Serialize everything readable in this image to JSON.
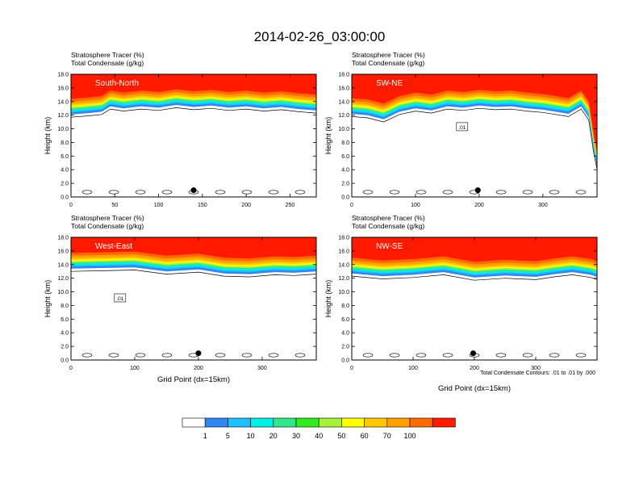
{
  "figure": {
    "title": "2014-02-26_03:00:00",
    "header_line1": "Stratosphere Tracer   (%)",
    "header_line2": "Total Condensate   (g/kg)",
    "contour_note": "Total Condensate Contours: .01 to .01 by .000",
    "colors": {
      "levels": [
        "#ffffff",
        "#2f86f0",
        "#1ec0ff",
        "#00f0e8",
        "#2ee88a",
        "#30ec1c",
        "#a8f03a",
        "#ffff00",
        "#ffc800",
        "#ffa000",
        "#ff6a00",
        "#ff1a00"
      ]
    }
  },
  "chart_data": [
    {
      "type": "heatmap",
      "panel": "South-North",
      "ylabel": "Height (km)",
      "xlabel": "",
      "xlim": [
        0,
        280
      ],
      "ylim": [
        0,
        18
      ],
      "xticks": [
        "0",
        "50",
        "100",
        "150",
        "200",
        "250"
      ],
      "yticks": [
        "0.0",
        "2.0",
        "4.0",
        "6.0",
        "8.0",
        "10.0",
        "12.0",
        "14.0",
        "16.0",
        "18.0"
      ],
      "tropopause_km": [
        [
          0,
          14.4
        ],
        [
          20,
          14.6
        ],
        [
          35,
          14.8
        ],
        [
          45,
          15.6
        ],
        [
          60,
          15.3
        ],
        [
          80,
          15.6
        ],
        [
          100,
          15.4
        ],
        [
          120,
          15.8
        ],
        [
          140,
          15.5
        ],
        [
          160,
          15.7
        ],
        [
          180,
          15.4
        ],
        [
          200,
          15.6
        ],
        [
          220,
          15.3
        ],
        [
          240,
          15.5
        ],
        [
          260,
          15.2
        ],
        [
          280,
          15.0
        ]
      ],
      "station_marker": [
        140,
        1.0
      ],
      "contour_label": ""
    },
    {
      "type": "heatmap",
      "panel": "SW-NE",
      "ylabel": "Height (km)",
      "xlabel": "",
      "xlim": [
        0,
        385
      ],
      "ylim": [
        0,
        18
      ],
      "xticks": [
        "0",
        "100",
        "200",
        "300"
      ],
      "yticks": [
        "0.0",
        "2.0",
        "4.0",
        "6.0",
        "8.0",
        "10.0",
        "12.0",
        "14.0",
        "16.0",
        "18.0"
      ],
      "tropopause_km": [
        [
          0,
          14.5
        ],
        [
          25,
          14.3
        ],
        [
          50,
          13.7
        ],
        [
          75,
          14.8
        ],
        [
          100,
          15.3
        ],
        [
          125,
          15.0
        ],
        [
          150,
          15.6
        ],
        [
          175,
          15.4
        ],
        [
          200,
          15.7
        ],
        [
          225,
          15.5
        ],
        [
          250,
          15.6
        ],
        [
          275,
          15.3
        ],
        [
          300,
          15.1
        ],
        [
          320,
          14.8
        ],
        [
          340,
          14.5
        ],
        [
          360,
          15.6
        ],
        [
          372,
          14.0
        ],
        [
          380,
          9.0
        ],
        [
          385,
          6.8
        ]
      ],
      "station_marker": [
        198,
        1.0
      ],
      "contour_label": ".01"
    },
    {
      "type": "heatmap",
      "panel": "West-East",
      "ylabel": "Height (km)",
      "xlabel": "Grid Point (dx=15km)",
      "xlim": [
        0,
        385
      ],
      "ylim": [
        0,
        18
      ],
      "xticks": [
        "0",
        "100",
        "200",
        "300"
      ],
      "yticks": [
        "0.0",
        "2.0",
        "4.0",
        "6.0",
        "8.0",
        "10.0",
        "12.0",
        "14.0",
        "16.0",
        "18.0"
      ],
      "tropopause_km": [
        [
          0,
          15.7
        ],
        [
          50,
          15.8
        ],
        [
          100,
          15.9
        ],
        [
          150,
          15.3
        ],
        [
          200,
          15.6
        ],
        [
          240,
          15.0
        ],
        [
          280,
          14.9
        ],
        [
          320,
          15.2
        ],
        [
          350,
          15.1
        ],
        [
          385,
          15.3
        ]
      ],
      "station_marker": [
        200,
        1.0
      ],
      "contour_label": ".01"
    },
    {
      "type": "heatmap",
      "panel": "NW-SE",
      "ylabel": "Height (km)",
      "xlabel": "Grid Point (dx=15km)",
      "xlim": [
        0,
        400
      ],
      "ylim": [
        0,
        18
      ],
      "xticks": [
        "0",
        "100",
        "200",
        "300"
      ],
      "yticks": [
        "0.0",
        "2.0",
        "4.0",
        "6.0",
        "8.0",
        "10.0",
        "12.0",
        "14.0",
        "16.0",
        "18.0"
      ],
      "tropopause_km": [
        [
          0,
          15.0
        ],
        [
          50,
          14.6
        ],
        [
          100,
          14.8
        ],
        [
          150,
          15.2
        ],
        [
          200,
          14.4
        ],
        [
          250,
          14.7
        ],
        [
          300,
          14.5
        ],
        [
          330,
          14.9
        ],
        [
          360,
          15.2
        ],
        [
          390,
          14.8
        ],
        [
          400,
          14.5
        ]
      ],
      "station_marker": [
        198,
        1.0
      ],
      "contour_label": ""
    }
  ],
  "colorbar": {
    "labels": [
      "1",
      "5",
      "10",
      "20",
      "30",
      "40",
      "50",
      "60",
      "70",
      "100"
    ]
  }
}
